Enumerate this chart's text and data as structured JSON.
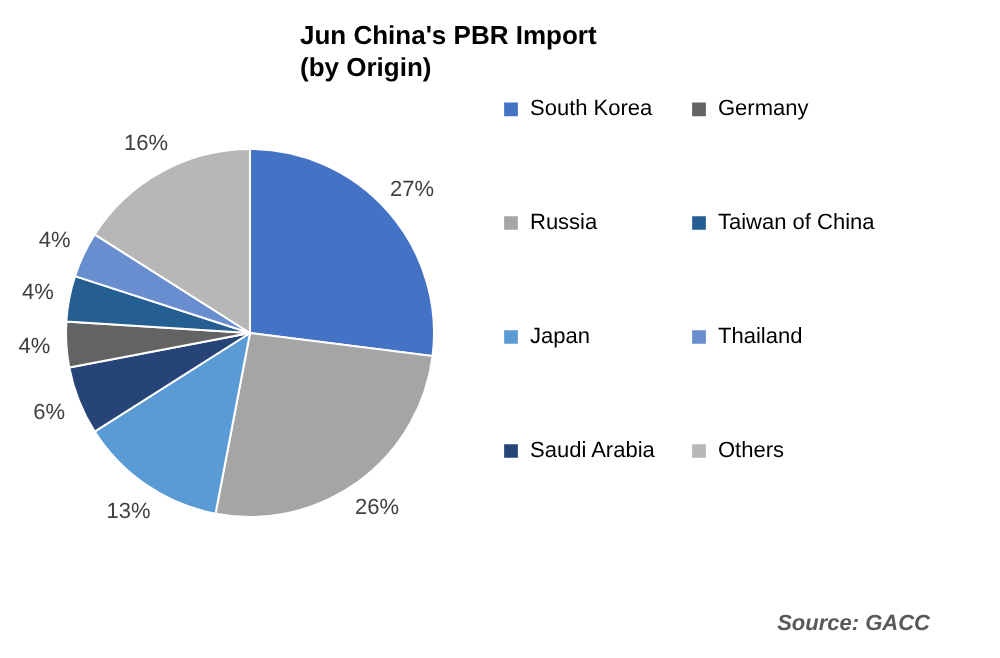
{
  "chart_data": {
    "type": "pie",
    "title": "Jun China's PBR Import",
    "subtitle": "(by Origin)",
    "categories": [
      "South Korea",
      "Russia",
      "Japan",
      "Saudi Arabia",
      "Germany",
      "Taiwan of China",
      "Thailand",
      "Others"
    ],
    "values": [
      27,
      26,
      13,
      6,
      4,
      4,
      4,
      16
    ],
    "value_labels": [
      "27%",
      "26%",
      "13%",
      "6%",
      "4%",
      "4%",
      "4%",
      "16%"
    ],
    "colors": [
      "#4472c4",
      "#a5a5a5",
      "#5b9bd5",
      "#264478",
      "#636363",
      "#255e91",
      "#698ed0",
      "#b7b7b7"
    ],
    "legend": "right",
    "annotations": [
      "Source: GACC"
    ]
  }
}
